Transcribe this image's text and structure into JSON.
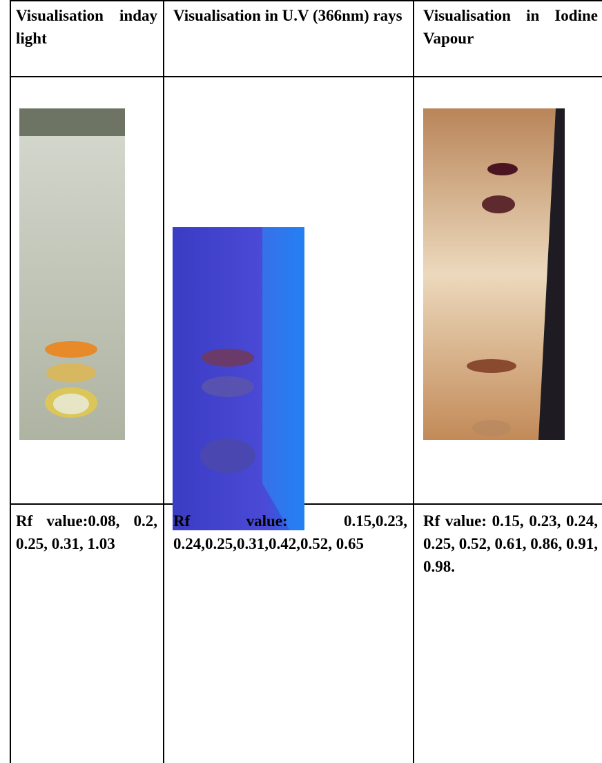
{
  "table": {
    "headers": [
      "Visualisation inday light",
      "Visualisation in U.V (366nm) rays",
      "Visualisation in Iodine Vapour"
    ],
    "rows": [
      [
        "Rf value:0.08, 0.2, 0.25, 0.31, 1.03",
        "Rf value: 0.15,0.23, 0.24,0.25,0.31,0.42,0.52, 0.65",
        "Rf value: 0.15, 0.23, 0.24, 0.25, 0.52, 0.61, 0.86, 0.91, 0.98."
      ]
    ]
  }
}
